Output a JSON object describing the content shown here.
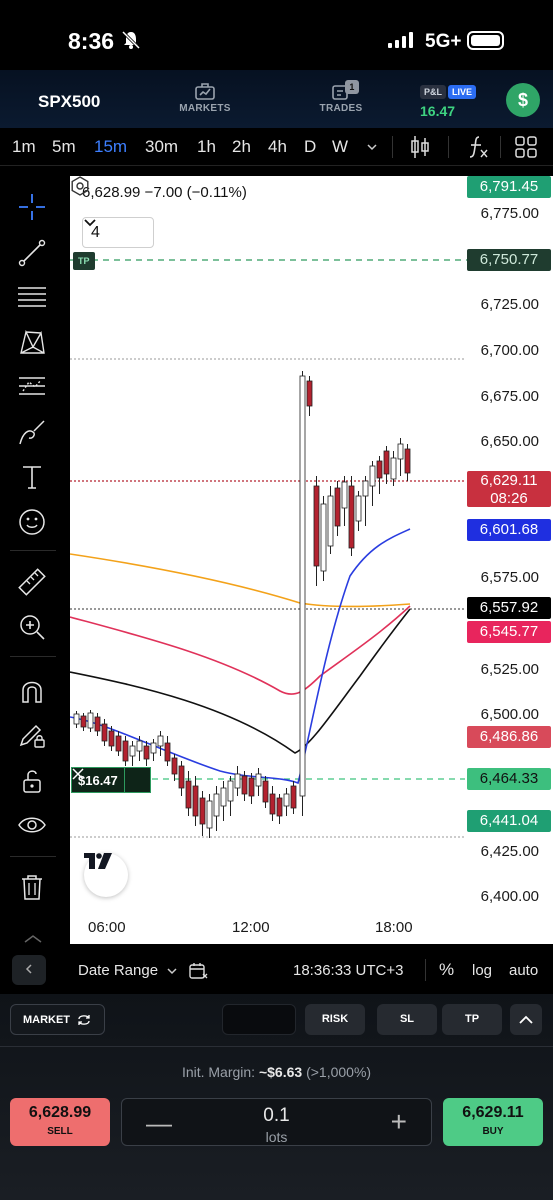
{
  "status_bar": {
    "time": "8:36",
    "network": "5G+"
  },
  "header": {
    "symbol": "SPX500",
    "markets_label": "MARKETS",
    "trades_label": "TRADES",
    "trades_count": "1",
    "pl_label": "P&L",
    "live_label": "LIVE",
    "pl_value": "16.47",
    "account_icon": "$"
  },
  "timeframes": [
    {
      "label": "1m"
    },
    {
      "label": "5m"
    },
    {
      "label": "15m",
      "active": true
    },
    {
      "label": "30m"
    },
    {
      "label": "1h"
    },
    {
      "label": "2h"
    },
    {
      "label": "4h"
    },
    {
      "label": "D"
    },
    {
      "label": "W"
    }
  ],
  "chart": {
    "ohlc_line": "6,628.99  −7.00 (−0.11%)",
    "indicator_count": "4",
    "tp_tag": "TP",
    "position_pnl": "$16.47",
    "y_axis_labels": [
      "6,775.00",
      "6,725.00",
      "6,700.00",
      "6,675.00",
      "6,650.00",
      "6,575.00",
      "6,525.00",
      "6,500.00",
      "6,425.00",
      "6,400.00"
    ],
    "price_tags": [
      {
        "text": "6,791.45",
        "color": "#1f9f73"
      },
      {
        "text": "6,750.77",
        "color": "#1f3c2f"
      },
      {
        "text": "6,629.11",
        "sub": "08:26",
        "color": "#c8303f"
      },
      {
        "text": "6,601.68",
        "color": "#1f2fe0"
      },
      {
        "text": "6,557.92",
        "color": "#000000"
      },
      {
        "text": "6,545.77",
        "color": "#e8255d"
      },
      {
        "text": "6,486.86",
        "color": "#d84a5a"
      },
      {
        "text": "6,464.33",
        "color": "#3dbf7e"
      },
      {
        "text": "6,441.04",
        "color": "#1f9f73"
      }
    ],
    "x_axis_labels": [
      "06:00",
      "12:00",
      "18:00"
    ],
    "colors": {
      "up": "#7f7f7f",
      "down": "#b3222f",
      "ma_blue": "#2a3de0",
      "ma_orange": "#f3a21a",
      "ma_red": "#e0325a",
      "ma_black": "#111111",
      "tp_line": "#2d9a5e",
      "sl_line": "#3ec37e"
    }
  },
  "bottom_bar": {
    "date_range": "Date Range",
    "clock": "18:36:33 UTC+3",
    "percent": "%",
    "log": "log",
    "auto": "auto"
  },
  "order_panel": {
    "order_type": "MARKET",
    "risk_label": "RISK",
    "sl_label": "SL",
    "tp_label": "TP",
    "margin_label": "Init. Margin:",
    "margin_value": "~$6.63",
    "margin_pct": "(>1,000%)",
    "sell_price": "6,628.99",
    "sell_label": "SELL",
    "buy_price": "6,629.11",
    "buy_label": "BUY",
    "lots_value": "0.1",
    "lots_label": "lots"
  }
}
